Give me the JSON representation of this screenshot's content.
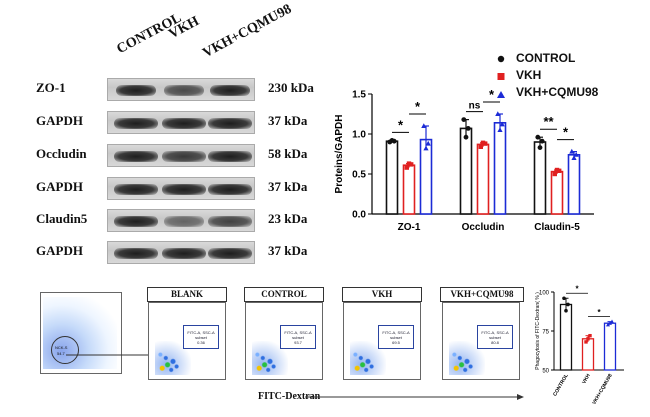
{
  "western_blot": {
    "lanes": [
      "CONTROL",
      "VKH",
      "VKH+CQMU98"
    ],
    "rows": [
      {
        "label": "ZO-1",
        "kda": "230 kDa"
      },
      {
        "label": "GAPDH",
        "kda": "37 kDa"
      },
      {
        "label": "Occludin",
        "kda": "58 kDa"
      },
      {
        "label": "GAPDH",
        "kda": "37 kDa"
      },
      {
        "label": "Claudin5",
        "kda": "23 kDa"
      },
      {
        "label": "GAPDH",
        "kda": "37 kDa"
      }
    ]
  },
  "legend": {
    "items": [
      {
        "label": "CONTROL",
        "color": "#111111",
        "marker": "circle"
      },
      {
        "label": "VKH",
        "color": "#e02020",
        "marker": "square"
      },
      {
        "label": "VKH+CQMU98",
        "color": "#1c2bd6",
        "marker": "triangle"
      }
    ]
  },
  "flow": {
    "panels": [
      "BLANK",
      "CONTROL",
      "VKH",
      "VKH+CQMU98"
    ],
    "gate_label": "FITC-A, SSC-A subset",
    "gate_values": [
      "0.36",
      "93.7",
      "69.5",
      "80.8"
    ],
    "xlabel": "FITC-Dextran",
    "first_gate": "NCK-S",
    "first_gate_value": "54.7"
  },
  "chart_data": [
    {
      "type": "bar",
      "ylabel": "Proteins/GAPDH",
      "categories": [
        "ZO-1",
        "Occludin",
        "Claudin-5"
      ],
      "ylim": [
        0,
        1.5
      ],
      "yticks": [
        "0.0",
        "0.5",
        "1.0",
        "1.5"
      ],
      "series": [
        {
          "name": "CONTROL",
          "values": [
            0.91,
            1.07,
            0.9
          ],
          "color": "#111111",
          "points": [
            [
              0.9,
              0.92,
              0.91
            ],
            [
              1.18,
              0.96,
              1.07
            ],
            [
              0.96,
              0.83,
              0.91
            ]
          ]
        },
        {
          "name": "VKH",
          "values": [
            0.61,
            0.87,
            0.53
          ],
          "color": "#e02020",
          "points": [
            [
              0.58,
              0.63,
              0.62
            ],
            [
              0.84,
              0.89,
              0.88
            ],
            [
              0.5,
              0.55,
              0.54
            ]
          ]
        },
        {
          "name": "VKH+CQMU98",
          "values": [
            0.93,
            1.14,
            0.74
          ],
          "color": "#1c2bd6",
          "points": [
            [
              1.1,
              0.82,
              0.88
            ],
            [
              1.25,
              1.05,
              1.12
            ],
            [
              0.78,
              0.7,
              0.74
            ]
          ]
        }
      ],
      "annotations": [
        {
          "group": "ZO-1",
          "pair": "CONTROL-VKH",
          "text": "*"
        },
        {
          "group": "ZO-1",
          "pair": "VKH-VKH+CQMU98",
          "text": "*"
        },
        {
          "group": "Occludin",
          "pair": "CONTROL-VKH",
          "text": "ns"
        },
        {
          "group": "Occludin",
          "pair": "VKH-VKH+CQMU98",
          "text": "*"
        },
        {
          "group": "Claudin-5",
          "pair": "CONTROL-VKH",
          "text": "**"
        },
        {
          "group": "Claudin-5",
          "pair": "VKH-VKH+CQMU98",
          "text": "*"
        }
      ]
    },
    {
      "type": "bar",
      "ylabel": "Phagocytosis of FITC-Dextran( % )",
      "categories": [
        "CONTROL",
        "VKH",
        "VKH+CQMU98"
      ],
      "ylim": [
        50,
        100
      ],
      "yticks": [
        "50",
        "75",
        "100"
      ],
      "values": [
        92,
        70,
        80
      ],
      "colors": [
        "#111111",
        "#e02020",
        "#1c2bd6"
      ],
      "points": [
        [
          96,
          88,
          92
        ],
        [
          68,
          70,
          72
        ],
        [
          79,
          80,
          81
        ]
      ],
      "annotations": [
        {
          "pair": "CONTROL-VKH",
          "text": "*"
        },
        {
          "pair": "VKH-VKH+CQMU98",
          "text": "*"
        }
      ]
    }
  ]
}
